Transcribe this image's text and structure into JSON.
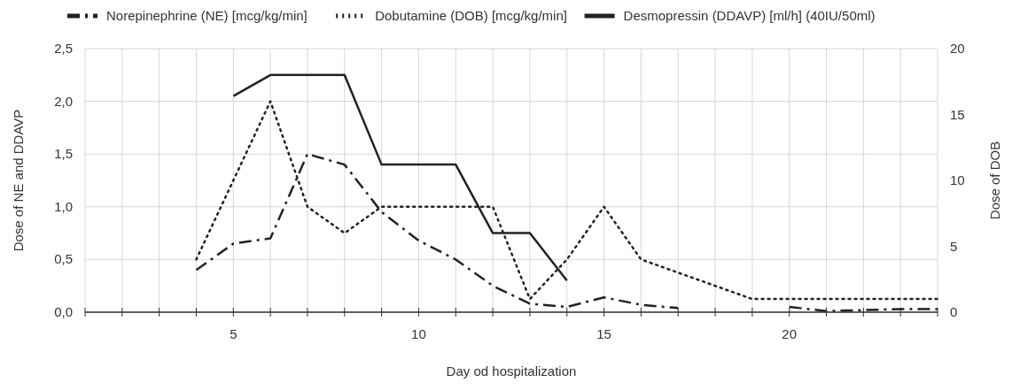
{
  "chart_data": {
    "type": "line",
    "xlabel": "Day od hospitalization",
    "ylabel": "Dose of NE and DDAVP",
    "y2label": "Dose of DOB",
    "x": [
      4,
      5,
      6,
      7,
      8,
      9,
      10,
      11,
      12,
      13,
      14,
      15,
      16,
      17,
      18,
      19,
      20,
      21,
      22,
      23,
      24
    ],
    "series": [
      {
        "name": "Norepinephrine (NE) [mcg/kg/min]",
        "color": "#222222",
        "line_style": "dashed",
        "values": [
          0.4,
          0.65,
          0.7,
          1.5,
          1.4,
          0.95,
          0.68,
          0.5,
          0.25,
          0.08,
          0.05,
          0.14,
          0.07,
          0.04,
          null,
          null,
          0.05,
          0.01,
          0.02,
          0.03,
          0.03
        ]
      },
      {
        "name": "Dobutamine (DOB) [mcg/kg/min]",
        "color": "#222222",
        "line_style": "dotted",
        "axis": "y2",
        "values": [
          4,
          10,
          16,
          8,
          6,
          8,
          8,
          8,
          8,
          1,
          4,
          8,
          4,
          3,
          2,
          1,
          1,
          1,
          1,
          1,
          1
        ]
      },
      {
        "name": "Desmopressin (DDAVP) [ml/h] (40IU/50ml)",
        "color": "#222222",
        "line_style": "solid",
        "values": [
          null,
          2.05,
          2.25,
          2.25,
          2.25,
          1.4,
          1.4,
          1.4,
          0.75,
          0.75,
          0.3,
          null,
          null,
          null,
          null,
          null,
          null,
          null,
          null,
          null,
          null
        ]
      }
    ],
    "xlim": [
      1,
      24
    ],
    "xticks": [
      {
        "value": 1,
        "label": null
      },
      {
        "value": 2,
        "label": null
      },
      {
        "value": 3,
        "label": null
      },
      {
        "value": 4,
        "label": null
      },
      5,
      {
        "value": 6,
        "label": null
      },
      {
        "value": 7,
        "label": null
      },
      {
        "value": 8,
        "label": null
      },
      {
        "value": 9,
        "label": null
      },
      10,
      {
        "value": 11,
        "label": null
      },
      {
        "value": 12,
        "label": null
      },
      {
        "value": 13,
        "label": null
      },
      {
        "value": 14,
        "label": null
      },
      15,
      {
        "value": 16,
        "label": null
      },
      {
        "value": 17,
        "label": null
      },
      {
        "value": 18,
        "label": null
      },
      {
        "value": 19,
        "label": null
      },
      20,
      {
        "value": 21,
        "label": null
      },
      {
        "value": 22,
        "label": null
      },
      {
        "value": 23,
        "label": null
      },
      {
        "value": 24,
        "label": null
      }
    ],
    "ylim": [
      0,
      2.5
    ],
    "yticks": [
      {
        "value": 0,
        "label": "0,0"
      },
      {
        "value": 0.5,
        "label": "0,5"
      },
      {
        "value": 1,
        "label": "1,0"
      },
      {
        "value": 1.5,
        "label": "1,5"
      },
      {
        "value": 2,
        "label": "2,0"
      },
      {
        "value": 2.5,
        "label": "2,5"
      }
    ],
    "y2lim": [
      0,
      20
    ],
    "y2ticks": [
      0,
      5,
      10,
      15,
      20
    ],
    "grid": true,
    "legend": "top left"
  }
}
